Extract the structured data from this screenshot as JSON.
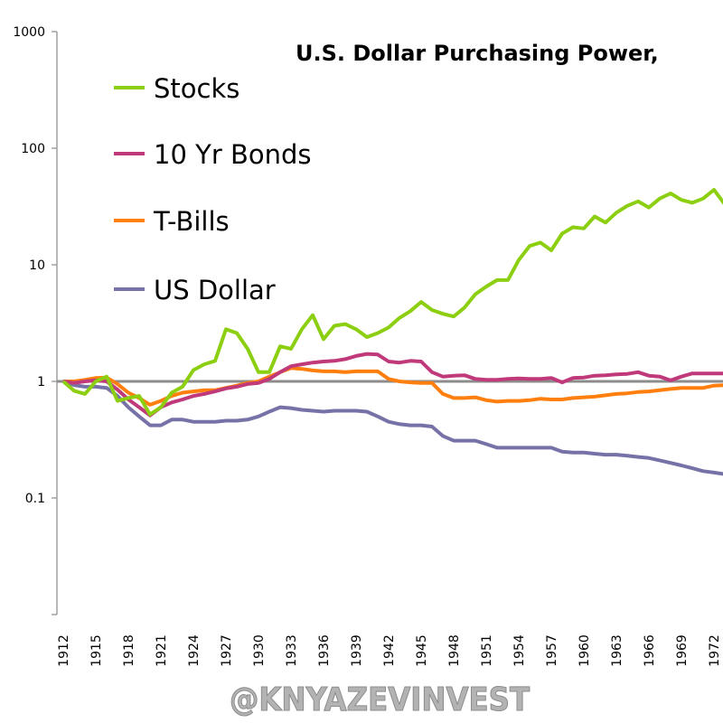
{
  "chart_data": {
    "type": "line",
    "title": "U.S. Dollar Purchasing Power,",
    "xlabel": "",
    "ylabel": "",
    "y_scale": "log",
    "ylim": [
      0.01,
      1000
    ],
    "xlim": [
      1912,
      1973
    ],
    "y_tick_labels": [
      "1000",
      "100",
      "10",
      "1",
      "0.1",
      ""
    ],
    "y_tick_values": [
      1000,
      100,
      10,
      1,
      0.1,
      0.01
    ],
    "x_tick_labels": [
      "1912",
      "1915",
      "1918",
      "1921",
      "1924",
      "1927",
      "1930",
      "1933",
      "1936",
      "1939",
      "1942",
      "1945",
      "1948",
      "1951",
      "1954",
      "1957",
      "1960",
      "1963",
      "1966",
      "1969",
      "1972"
    ],
    "reference_line": 1,
    "legend_position": "top-left",
    "x": [
      1912,
      1913,
      1914,
      1915,
      1916,
      1917,
      1918,
      1919,
      1920,
      1921,
      1922,
      1923,
      1924,
      1925,
      1926,
      1927,
      1928,
      1929,
      1930,
      1931,
      1932,
      1933,
      1934,
      1935,
      1936,
      1937,
      1938,
      1939,
      1940,
      1941,
      1942,
      1943,
      1944,
      1945,
      1946,
      1947,
      1948,
      1949,
      1950,
      1951,
      1952,
      1953,
      1954,
      1955,
      1956,
      1957,
      1958,
      1959,
      1960,
      1961,
      1962,
      1963,
      1964,
      1965,
      1966,
      1967,
      1968,
      1969,
      1970,
      1971,
      1972,
      1973
    ],
    "series": [
      {
        "name": "Stocks",
        "color": "#8ccf10",
        "values": [
          1,
          0.83,
          0.78,
          1.0,
          1.1,
          0.68,
          0.72,
          0.75,
          0.52,
          0.6,
          0.8,
          0.9,
          1.25,
          1.4,
          1.5,
          2.8,
          2.6,
          1.9,
          1.2,
          1.2,
          2.0,
          1.9,
          2.8,
          3.7,
          2.3,
          3.0,
          3.1,
          2.8,
          2.4,
          2.6,
          2.9,
          3.5,
          4.0,
          4.8,
          4.1,
          3.8,
          3.6,
          4.3,
          5.6,
          6.5,
          7.4,
          7.4,
          11,
          14.5,
          15.5,
          13.3,
          18.5,
          21,
          20.5,
          26,
          23,
          28,
          32,
          35,
          31,
          37,
          41,
          36,
          34,
          37,
          44,
          33
        ]
      },
      {
        "name": "10 Yr Bonds",
        "color": "#c0397a",
        "values": [
          1,
          0.97,
          1.0,
          1.02,
          1.0,
          0.85,
          0.7,
          0.6,
          0.51,
          0.6,
          0.66,
          0.7,
          0.75,
          0.78,
          0.82,
          0.87,
          0.9,
          0.95,
          0.97,
          1.05,
          1.2,
          1.35,
          1.4,
          1.45,
          1.48,
          1.5,
          1.55,
          1.65,
          1.72,
          1.7,
          1.48,
          1.45,
          1.5,
          1.48,
          1.2,
          1.1,
          1.12,
          1.13,
          1.05,
          1.03,
          1.03,
          1.05,
          1.06,
          1.05,
          1.05,
          1.07,
          0.98,
          1.07,
          1.08,
          1.12,
          1.13,
          1.15,
          1.16,
          1.2,
          1.12,
          1.1,
          1.02,
          1.1,
          1.17,
          1.17,
          1.17,
          1.17
        ]
      },
      {
        "name": "T-Bills",
        "color": "#ff7f0e",
        "values": [
          1,
          1.0,
          1.03,
          1.07,
          1.08,
          0.95,
          0.8,
          0.72,
          0.63,
          0.68,
          0.75,
          0.8,
          0.82,
          0.84,
          0.84,
          0.88,
          0.92,
          0.97,
          1.0,
          1.1,
          1.2,
          1.3,
          1.28,
          1.24,
          1.22,
          1.22,
          1.2,
          1.22,
          1.22,
          1.22,
          1.05,
          1.0,
          0.98,
          0.97,
          0.97,
          0.78,
          0.72,
          0.72,
          0.73,
          0.69,
          0.67,
          0.68,
          0.68,
          0.69,
          0.71,
          0.7,
          0.7,
          0.72,
          0.73,
          0.74,
          0.76,
          0.78,
          0.79,
          0.81,
          0.82,
          0.84,
          0.86,
          0.88,
          0.88,
          0.88,
          0.92,
          0.93
        ]
      },
      {
        "name": "US Dollar",
        "color": "#7672a8",
        "values": [
          1,
          0.93,
          0.9,
          0.9,
          0.88,
          0.75,
          0.6,
          0.5,
          0.42,
          0.42,
          0.47,
          0.47,
          0.45,
          0.45,
          0.45,
          0.46,
          0.46,
          0.47,
          0.5,
          0.55,
          0.6,
          0.59,
          0.57,
          0.56,
          0.55,
          0.56,
          0.56,
          0.56,
          0.55,
          0.5,
          0.45,
          0.43,
          0.42,
          0.42,
          0.41,
          0.34,
          0.31,
          0.31,
          0.31,
          0.29,
          0.27,
          0.27,
          0.27,
          0.27,
          0.27,
          0.27,
          0.25,
          0.245,
          0.245,
          0.24,
          0.235,
          0.235,
          0.23,
          0.225,
          0.22,
          0.21,
          0.2,
          0.19,
          0.18,
          0.17,
          0.165,
          0.16
        ]
      }
    ]
  },
  "watermark": "@KNYAZEVINVEST"
}
